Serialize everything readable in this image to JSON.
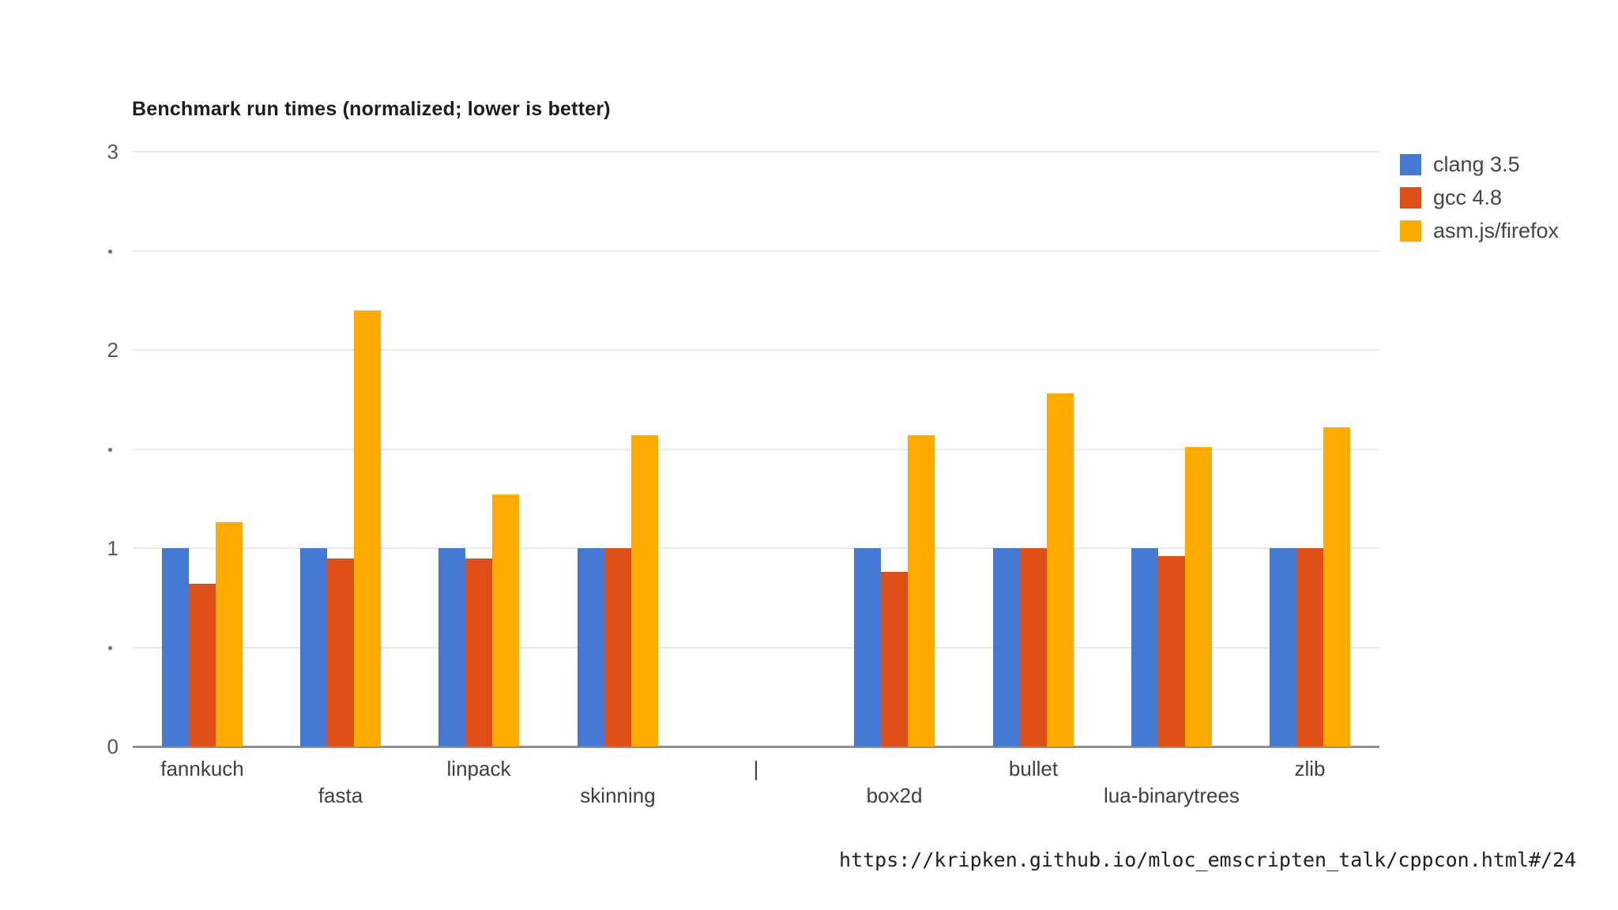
{
  "title": "Benchmark run times (normalized; lower is better)",
  "source_url": "https://kripken.github.io/mloc_emscripten_talk/cppcon.html#/24",
  "colors": {
    "clang": "#4478D2",
    "gcc": "#DE4F16",
    "asmjs": "#FFAB00",
    "gridline": "#e9e9e9",
    "axis_line": "#909090",
    "title_text": "#1d1d1d",
    "tick_text": "#575757",
    "category_text": "#3f3f3f",
    "legend_text": "#454545"
  },
  "chart_data": {
    "type": "bar",
    "title": "Benchmark run times (normalized; lower is better)",
    "categories": [
      "fannkuch",
      "fasta",
      "linpack",
      "skinning",
      "|",
      "box2d",
      "bullet",
      "lua-binarytrees",
      "zlib"
    ],
    "series": [
      {
        "name": "clang 3.5",
        "color": "#4478D2",
        "values": [
          1.0,
          1.0,
          1.0,
          1.0,
          null,
          1.0,
          1.0,
          1.0,
          1.0
        ]
      },
      {
        "name": "gcc 4.8",
        "color": "#DE4F16",
        "values": [
          0.82,
          0.95,
          0.95,
          1.0,
          null,
          0.88,
          1.0,
          0.96,
          1.0
        ]
      },
      {
        "name": "asm.js/firefox",
        "color": "#FFAB00",
        "values": [
          1.13,
          2.2,
          1.27,
          1.57,
          null,
          1.57,
          1.78,
          1.51,
          1.61
        ]
      }
    ],
    "xlabel": "",
    "ylabel": "",
    "ylim": [
      0,
      3
    ],
    "yticks": [
      {
        "value": 3,
        "label": "3"
      },
      {
        "value": 2.5,
        "label": "·"
      },
      {
        "value": 2,
        "label": "2"
      },
      {
        "value": 1.5,
        "label": "·"
      },
      {
        "value": 1,
        "label": "1"
      },
      {
        "value": 0.5,
        "label": "·"
      },
      {
        "value": 0,
        "label": "0"
      }
    ],
    "grid": true,
    "legend_position": "right",
    "legend": [
      "clang 3.5",
      "gcc 4.8",
      "asm.js/firefox"
    ]
  }
}
